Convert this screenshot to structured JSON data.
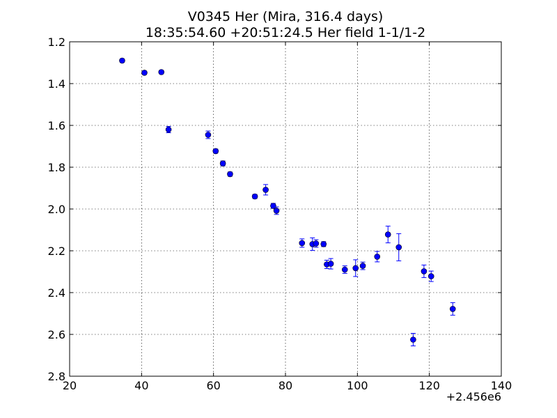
{
  "chart_data": {
    "type": "scatter",
    "title": "V0345 Her (Mira, 316.4 days)",
    "subtitle": "18:35:54.60 +20:51:24.5 Her field 1-1/1-2",
    "x_offset_label": "+2.456e6",
    "xlim": [
      20,
      140
    ],
    "ylim": [
      1.2,
      2.8
    ],
    "y_inverted": true,
    "x_ticks": [
      20,
      40,
      60,
      80,
      100,
      120,
      140
    ],
    "y_ticks": [
      1.2,
      1.4,
      1.6,
      1.8,
      2.0,
      2.2,
      2.4,
      2.6,
      2.8
    ],
    "x_tick_labels": [
      "20",
      "40",
      "60",
      "80",
      "100",
      "120",
      "140"
    ],
    "y_tick_labels": [
      "1.2",
      "1.4",
      "1.6",
      "1.8",
      "2.0",
      "2.2",
      "2.4",
      "2.6",
      "2.8"
    ],
    "grid": true,
    "marker_color": "#0000ff",
    "points": [
      {
        "x": 34.6,
        "y": 1.29,
        "err": 0.008
      },
      {
        "x": 40.8,
        "y": 1.348,
        "err": 0.008
      },
      {
        "x": 45.5,
        "y": 1.345,
        "err": 0.008
      },
      {
        "x": 47.5,
        "y": 1.62,
        "err": 0.015
      },
      {
        "x": 58.5,
        "y": 1.645,
        "err": 0.018
      },
      {
        "x": 60.6,
        "y": 1.723,
        "err": 0.01
      },
      {
        "x": 62.6,
        "y": 1.782,
        "err": 0.012
      },
      {
        "x": 64.6,
        "y": 1.833,
        "err": 0.01
      },
      {
        "x": 71.5,
        "y": 1.94,
        "err": 0.01
      },
      {
        "x": 74.5,
        "y": 1.908,
        "err": 0.025
      },
      {
        "x": 76.6,
        "y": 1.985,
        "err": 0.012
      },
      {
        "x": 77.5,
        "y": 2.008,
        "err": 0.018
      },
      {
        "x": 84.6,
        "y": 2.163,
        "err": 0.02
      },
      {
        "x": 87.5,
        "y": 2.168,
        "err": 0.03
      },
      {
        "x": 88.5,
        "y": 2.165,
        "err": 0.018
      },
      {
        "x": 90.6,
        "y": 2.168,
        "err": 0.012
      },
      {
        "x": 91.5,
        "y": 2.265,
        "err": 0.02
      },
      {
        "x": 92.6,
        "y": 2.262,
        "err": 0.025
      },
      {
        "x": 96.5,
        "y": 2.29,
        "err": 0.018
      },
      {
        "x": 99.5,
        "y": 2.283,
        "err": 0.04
      },
      {
        "x": 101.5,
        "y": 2.272,
        "err": 0.018
      },
      {
        "x": 105.5,
        "y": 2.228,
        "err": 0.025
      },
      {
        "x": 108.5,
        "y": 2.122,
        "err": 0.04
      },
      {
        "x": 111.5,
        "y": 2.183,
        "err": 0.065
      },
      {
        "x": 115.5,
        "y": 2.625,
        "err": 0.03
      },
      {
        "x": 118.5,
        "y": 2.298,
        "err": 0.03
      },
      {
        "x": 120.5,
        "y": 2.322,
        "err": 0.025
      },
      {
        "x": 126.5,
        "y": 2.478,
        "err": 0.03
      }
    ]
  }
}
